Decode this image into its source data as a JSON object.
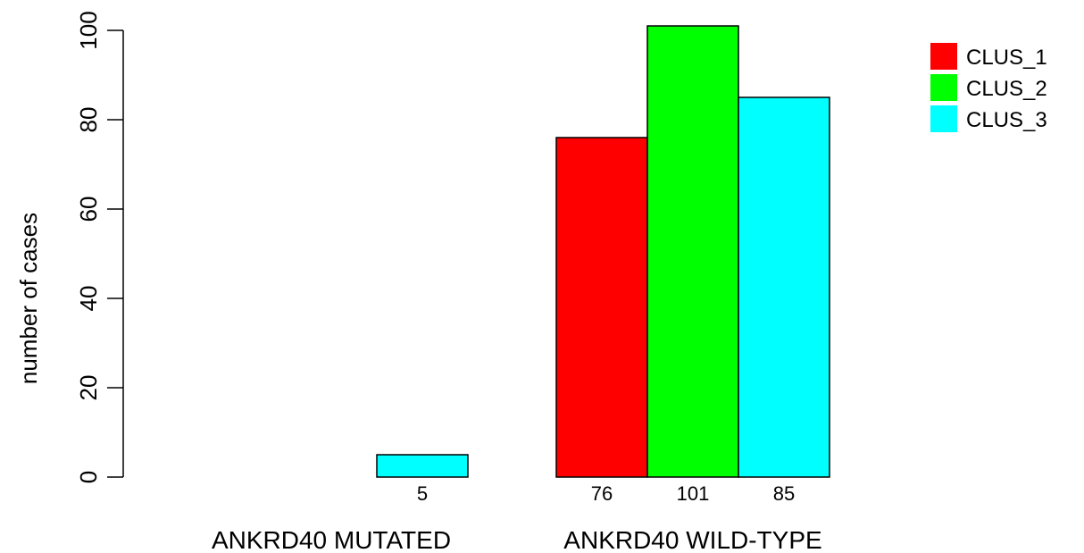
{
  "chart_data": {
    "type": "bar",
    "title": "",
    "xlabel": "",
    "ylabel": "number of cases",
    "ylim": [
      0,
      100
    ],
    "yticks": [
      0,
      20,
      40,
      60,
      80,
      100
    ],
    "categories": [
      "ANKRD40 MUTATED",
      "ANKRD40 WILD-TYPE"
    ],
    "series": [
      {
        "name": "CLUS_1",
        "color": "#ff0000",
        "values": [
          0,
          76
        ],
        "labels": [
          "",
          "76"
        ]
      },
      {
        "name": "CLUS_2",
        "color": "#00ff00",
        "values": [
          0,
          101
        ],
        "labels": [
          "",
          "101"
        ]
      },
      {
        "name": "CLUS_3",
        "color": "#00ffff",
        "values": [
          5,
          85
        ],
        "labels": [
          "5",
          "85"
        ]
      }
    ],
    "grid": false,
    "legend_position": "top-right"
  }
}
